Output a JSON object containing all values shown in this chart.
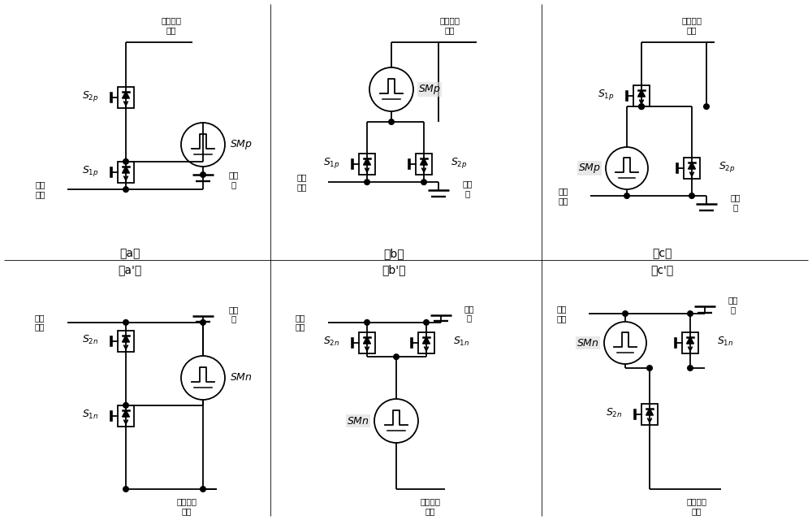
{
  "bg": "#ffffff",
  "lc": "#000000",
  "panels": [
    "a",
    "b",
    "c",
    "a_prime",
    "b_prime",
    "c_prime"
  ],
  "labels_top": [
    "（a）",
    "（b）",
    "（c）"
  ],
  "labels_bot": [
    "（a'）",
    "（b'）",
    "（c'）"
  ]
}
